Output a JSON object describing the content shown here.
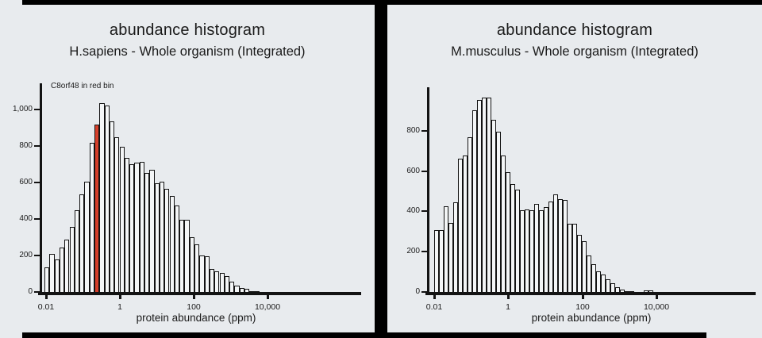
{
  "page": {
    "background_color": "#e8ebee",
    "frame_color": "#000000"
  },
  "chart_data": [
    {
      "type": "bar",
      "chart_kind": "histogram",
      "title": "abundance histogram",
      "subtitle": "H.sapiens - Whole organism (Integrated)",
      "annotation": "C8orf48 in red bin",
      "xlabel": "protein abundance (ppm)",
      "x_scale": "log",
      "x_tick_labels": [
        "0.01",
        "1",
        "100",
        "10,000"
      ],
      "x_tick_values": [
        0.01,
        1,
        100,
        10000
      ],
      "y_tick_labels": [
        "0",
        "200",
        "400",
        "600",
        "800",
        "1,000"
      ],
      "y_tick_values": [
        0,
        200,
        400,
        600,
        800,
        1000
      ],
      "ylim": [
        0,
        1080
      ],
      "grid": false,
      "legend": "none",
      "bar_fill": "#f4f6f7",
      "bar_edge": "#131313",
      "highlight_fill": "#d6402b",
      "highlight_index": 10,
      "values": [
        140,
        212,
        182,
        247,
        290,
        362,
        450,
        540,
        610,
        820,
        920,
        1040,
        1028,
        940,
        850,
        802,
        740,
        705,
        712,
        718,
        658,
        672,
        598,
        608,
        570,
        532,
        480,
        400,
        400,
        305,
        265,
        205,
        200,
        130,
        118,
        108,
        90,
        60,
        40,
        25,
        20,
        8,
        8
      ]
    },
    {
      "type": "bar",
      "chart_kind": "histogram",
      "title": "abundance histogram",
      "subtitle": "M.musculus - Whole organism (Integrated)",
      "annotation": "",
      "xlabel": "protein abundance (ppm)",
      "x_scale": "log",
      "x_tick_labels": [
        "0.01",
        "1",
        "100",
        "10,000"
      ],
      "x_tick_values": [
        0.01,
        1,
        100,
        10000
      ],
      "y_tick_labels": [
        "0",
        "200",
        "400",
        "600",
        "800"
      ],
      "y_tick_values": [
        0,
        200,
        400,
        600,
        800
      ],
      "ylim": [
        0,
        1000
      ],
      "grid": false,
      "legend": "none",
      "bar_fill": "#f4f6f7",
      "bar_edge": "#131313",
      "highlight_fill": null,
      "highlight_index": null,
      "values": [
        310,
        310,
        430,
        345,
        447,
        665,
        680,
        770,
        905,
        955,
        967,
        967,
        860,
        800,
        680,
        600,
        538,
        511,
        410,
        415,
        410,
        440,
        408,
        426,
        452,
        488,
        466,
        459,
        344,
        344,
        289,
        256,
        186,
        140,
        105,
        89,
        66,
        49,
        26,
        16,
        8,
        5,
        0,
        0,
        10,
        10
      ]
    }
  ]
}
